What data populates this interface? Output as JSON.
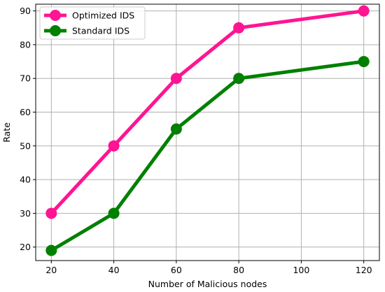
{
  "chart_data": {
    "type": "line",
    "title": "",
    "xlabel": "Number of Malicious nodes",
    "ylabel": "Rate",
    "x_ticks": [
      20,
      40,
      60,
      80,
      100,
      120
    ],
    "y_ticks": [
      20,
      30,
      40,
      50,
      60,
      70,
      80,
      90
    ],
    "xlim": [
      15,
      125
    ],
    "ylim": [
      16,
      92
    ],
    "grid": true,
    "legend_position": "top-left",
    "series": [
      {
        "name": "Optimized IDS",
        "color": "#ff1493",
        "marker": "circle",
        "x": [
          20,
          40,
          60,
          80,
          120
        ],
        "y": [
          30,
          50,
          70,
          85,
          90
        ]
      },
      {
        "name": "Standard IDS",
        "color": "#008000",
        "marker": "circle",
        "x": [
          20,
          40,
          60,
          80,
          120
        ],
        "y": [
          19,
          30,
          55,
          70,
          75
        ]
      }
    ]
  }
}
